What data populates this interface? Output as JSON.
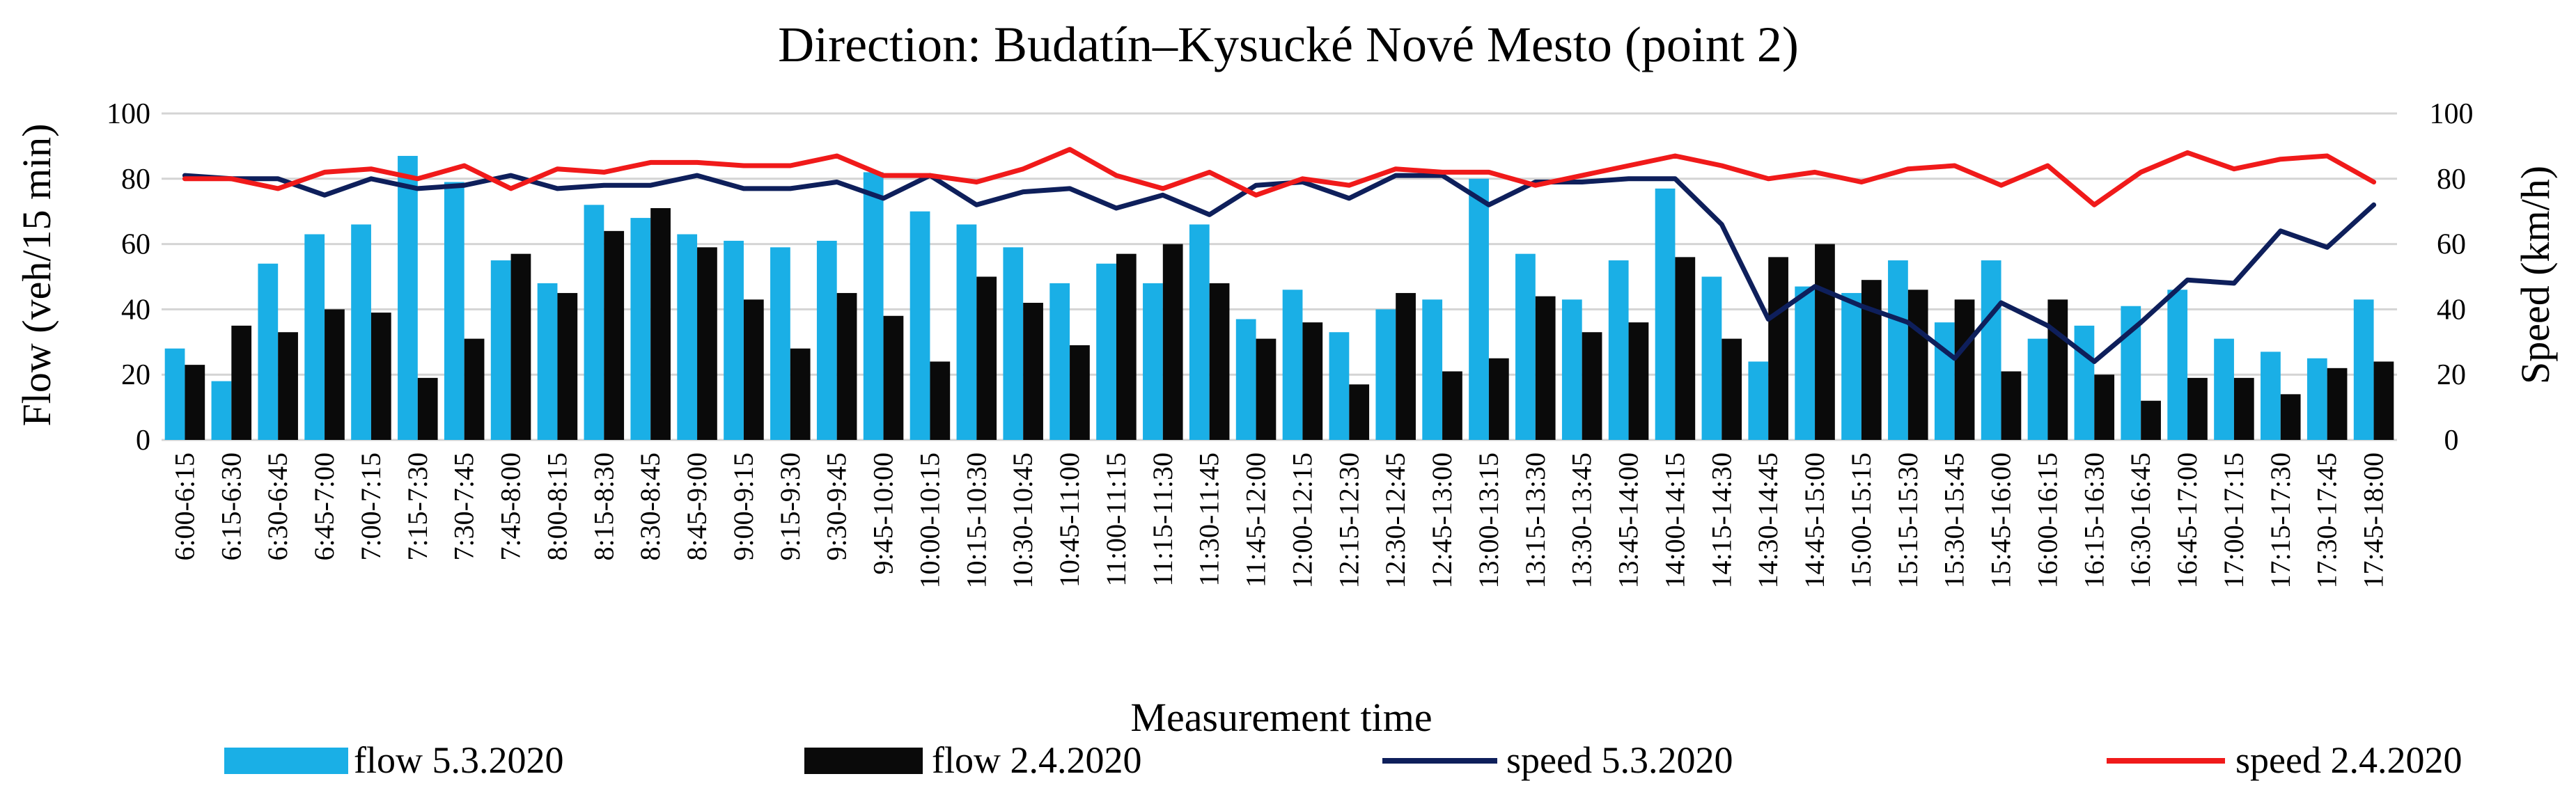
{
  "chart_data": {
    "type": "bar",
    "title": "Direction: Budatín–Kysucké Nové Mesto (point 2)",
    "xlabel": "Measurement time",
    "ylabel": "Flow (veh/15 min)",
    "y2label": "Speed (km/h)",
    "ylim": [
      0,
      100
    ],
    "y2lim": [
      0,
      100
    ],
    "yticks": [
      "0",
      "20",
      "40",
      "60",
      "80",
      "100"
    ],
    "grid": true,
    "legend_position": "bottom",
    "categories": [
      "6:00-6:15",
      "6:15-6:30",
      "6:30-6:45",
      "6:45-7:00",
      "7:00-7:15",
      "7:15-7:30",
      "7:30-7:45",
      "7:45-8:00",
      "8:00-8:15",
      "8:15-8:30",
      "8:30-8:45",
      "8:45-9:00",
      "9:00-9:15",
      "9:15-9:30",
      "9:30-9:45",
      "9:45-10:00",
      "10:00-10:15",
      "10:15-10:30",
      "10:30-10:45",
      "10:45-11:00",
      "11:00-11:15",
      "11:15-11:30",
      "11:30-11:45",
      "11:45-12:00",
      "12:00-12:15",
      "12:15-12:30",
      "12:30-12:45",
      "12:45-13:00",
      "13:00-13:15",
      "13:15-13:30",
      "13:30-13:45",
      "13:45-14:00",
      "14:00-14:15",
      "14:15-14:30",
      "14:30-14:45",
      "14:45-15:00",
      "15:00-15:15",
      "15:15-15:30",
      "15:30-15:45",
      "15:45-16:00",
      "16:00-16:15",
      "16:15-16:30",
      "16:30-16:45",
      "16:45-17:00",
      "17:00-17:15",
      "17:15-17:30",
      "17:30-17:45",
      "17:45-18:00"
    ],
    "series": [
      {
        "name": "flow 5.3.2020",
        "kind": "bar",
        "axis": "left",
        "color": "#1AAFE6",
        "values": [
          28,
          18,
          54,
          63,
          66,
          87,
          79,
          55,
          48,
          72,
          68,
          63,
          61,
          59,
          61,
          82,
          70,
          66,
          59,
          48,
          54,
          48,
          66,
          37,
          46,
          33,
          40,
          43,
          80,
          57,
          43,
          55,
          77,
          50,
          24,
          47,
          45,
          55,
          36,
          55,
          31,
          35,
          41,
          46,
          31,
          27,
          25,
          43
        ]
      },
      {
        "name": "flow 2.4.2020",
        "kind": "bar",
        "axis": "left",
        "color": "#0A0A0A",
        "values": [
          23,
          35,
          33,
          40,
          39,
          19,
          31,
          57,
          45,
          64,
          71,
          59,
          43,
          28,
          45,
          38,
          24,
          50,
          42,
          29,
          57,
          60,
          48,
          31,
          36,
          17,
          45,
          21,
          25,
          44,
          33,
          36,
          56,
          31,
          56,
          60,
          49,
          46,
          43,
          21,
          43,
          20,
          12,
          19,
          19,
          14,
          22,
          24
        ]
      },
      {
        "name": "speed 5.3.2020",
        "kind": "line",
        "axis": "right",
        "color": "#0E1F5B",
        "values": [
          81,
          80,
          80,
          75,
          80,
          77,
          78,
          81,
          77,
          78,
          78,
          81,
          77,
          77,
          79,
          74,
          81,
          72,
          76,
          77,
          71,
          75,
          69,
          78,
          79,
          74,
          81,
          81,
          72,
          79,
          79,
          80,
          80,
          66,
          37,
          47,
          41,
          36,
          25,
          42,
          35,
          24,
          36,
          49,
          48,
          64,
          59,
          72
        ]
      },
      {
        "name": "speed 2.4.2020",
        "kind": "line",
        "axis": "right",
        "color": "#F01A1A",
        "values": [
          80,
          80,
          77,
          82,
          83,
          80,
          84,
          77,
          83,
          82,
          85,
          85,
          84,
          84,
          87,
          81,
          81,
          79,
          83,
          89,
          81,
          77,
          82,
          75,
          80,
          78,
          83,
          82,
          82,
          78,
          81,
          84,
          87,
          84,
          80,
          82,
          79,
          83,
          84,
          78,
          84,
          72,
          82,
          88,
          83,
          86,
          87,
          79
        ]
      }
    ]
  }
}
